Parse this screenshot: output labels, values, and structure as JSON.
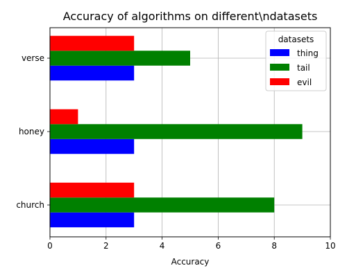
{
  "chart_data": {
    "type": "bar",
    "orientation": "horizontal",
    "title": "Accuracy of algorithms on different\\ndatasets",
    "xlabel": "Accuracy",
    "ylabel": "",
    "xlim": [
      0,
      10
    ],
    "xticks": [
      0,
      2,
      4,
      6,
      8,
      10
    ],
    "categories": [
      "church",
      "honey",
      "verse"
    ],
    "grid": true,
    "legend": {
      "title": "datasets",
      "placement": "top-right"
    },
    "series": [
      {
        "name": "thing",
        "color": "#0000ff",
        "values": [
          3,
          3,
          3
        ]
      },
      {
        "name": "tail",
        "color": "#008000",
        "values": [
          8,
          9,
          5
        ]
      },
      {
        "name": "evil",
        "color": "#ff0000",
        "values": [
          3,
          1,
          3
        ]
      }
    ]
  }
}
